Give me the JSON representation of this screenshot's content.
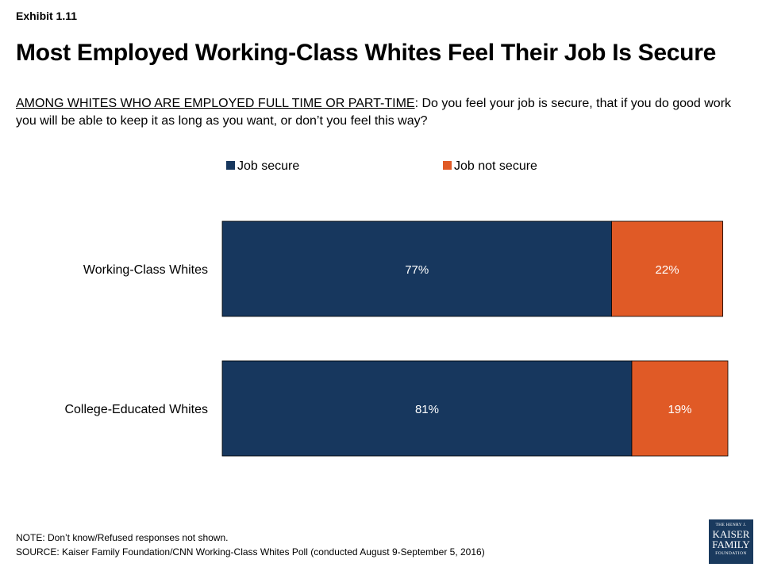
{
  "exhibit": "Exhibit 1.11",
  "title": "Most Employed Working-Class Whites Feel Their Job Is Secure",
  "question": {
    "lead": "AMONG WHITES WHO ARE EMPLOYED FULL TIME OR PART-TIME",
    "text": ": Do you feel your job is secure, that if you do good work you will be able to keep it as long as you want, or don’t you feel this way?"
  },
  "chart_data": {
    "type": "bar",
    "orientation": "horizontal",
    "stacked": true,
    "categories": [
      "Working-Class Whites",
      "College-Educated Whites"
    ],
    "series": [
      {
        "name": "Job secure",
        "values": [
          77,
          81
        ],
        "labels": [
          "77%",
          "81%"
        ],
        "color": "#17375e"
      },
      {
        "name": "Job not secure",
        "values": [
          22,
          19
        ],
        "labels": [
          "22%",
          "19%"
        ],
        "color": "#e05a26"
      }
    ],
    "xlim": [
      0,
      100
    ],
    "grid": false,
    "legend_position": "top"
  },
  "footer": {
    "note": "NOTE: Don’t know/Refused responses not shown.",
    "source": "SOURCE: Kaiser Family Foundation/CNN Working-Class Whites Poll (conducted August 9-September 5, 2016)"
  },
  "logo": {
    "line1": "THE HENRY J.",
    "line2": "KAISER",
    "line3": "FAMILY",
    "line4": "FOUNDATION"
  }
}
